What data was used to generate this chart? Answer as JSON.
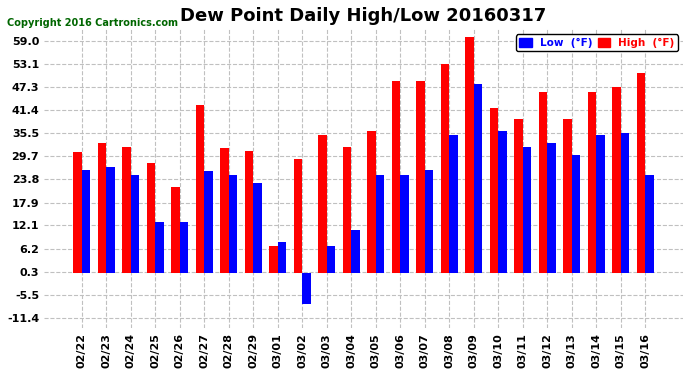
{
  "title": "Dew Point Daily High/Low 20160317",
  "copyright": "Copyright 2016 Cartronics.com",
  "legend_low": "Low  (°F)",
  "legend_high": "High  (°F)",
  "categories": [
    "02/22",
    "02/23",
    "02/24",
    "02/25",
    "02/26",
    "02/27",
    "02/28",
    "02/29",
    "03/01",
    "03/02",
    "03/03",
    "03/04",
    "03/05",
    "03/06",
    "03/07",
    "03/08",
    "03/09",
    "03/10",
    "03/11",
    "03/12",
    "03/13",
    "03/14",
    "03/15",
    "03/16"
  ],
  "high": [
    30.9,
    33.1,
    32.0,
    28.0,
    21.9,
    42.8,
    31.9,
    31.0,
    7.0,
    28.9,
    35.1,
    32.0,
    36.0,
    48.9,
    48.9,
    53.1,
    60.1,
    42.0,
    39.2,
    46.0,
    39.2,
    46.0,
    47.3,
    51.0
  ],
  "low": [
    26.1,
    27.0,
    24.9,
    13.1,
    13.1,
    26.0,
    24.9,
    22.9,
    7.9,
    -7.9,
    7.0,
    11.0,
    25.0,
    24.9,
    26.1,
    35.1,
    48.2,
    36.0,
    32.0,
    33.1,
    30.0,
    35.1,
    35.6,
    24.9
  ],
  "yticks": [
    -11.4,
    -5.5,
    0.3,
    6.2,
    12.1,
    17.9,
    23.8,
    29.7,
    35.5,
    41.4,
    47.3,
    53.1,
    59.0
  ],
  "ymin": -14.0,
  "ymax": 62.0,
  "bar_width": 0.35,
  "high_color": "#ff0000",
  "low_color": "#0000ff",
  "bg_color": "#ffffff",
  "grid_color": "#c0c0c0",
  "title_fontsize": 13,
  "label_fontsize": 8
}
